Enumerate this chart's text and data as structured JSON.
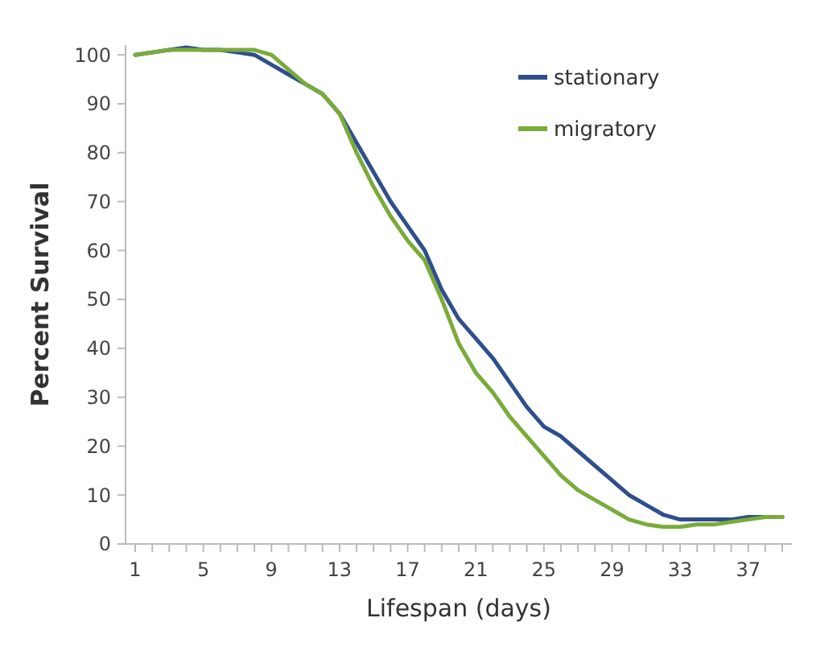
{
  "chart_data": {
    "type": "line",
    "xlabel": "Lifespan (days)",
    "ylabel": "Percent Survival",
    "categories": [
      "1",
      null,
      null,
      null,
      "5",
      null,
      null,
      null,
      "9",
      null,
      null,
      null,
      "13",
      null,
      null,
      null,
      "17",
      null,
      null,
      null,
      "21",
      null,
      null,
      null,
      "25",
      null,
      null,
      null,
      "29",
      null,
      null,
      null,
      "33",
      null,
      null,
      null,
      "37",
      null,
      null
    ],
    "series": [
      {
        "name": "stationary",
        "color": "#2f4f8c",
        "values": [
          100,
          100.5,
          101,
          101.5,
          101,
          101,
          100.5,
          100,
          98,
          96,
          94,
          92,
          88,
          82,
          76,
          70,
          65,
          60,
          52,
          46,
          42,
          38,
          33,
          28,
          24,
          22,
          19,
          16,
          13,
          10,
          8,
          6,
          5,
          5,
          5,
          5,
          5.5,
          5.5,
          5.5
        ]
      },
      {
        "name": "migratory",
        "color": "#7aab3a",
        "values": [
          100,
          100.5,
          101,
          101,
          101,
          101,
          101,
          101,
          100,
          97,
          94,
          92,
          88,
          80,
          73,
          67,
          62,
          58,
          50,
          41,
          35,
          31,
          26,
          22,
          18,
          14,
          11,
          9,
          7,
          5,
          4,
          3.5,
          3.5,
          4,
          4,
          4.5,
          5,
          5.5,
          5.5
        ]
      }
    ],
    "ylim": [
      0,
      102
    ],
    "yticks": [
      0,
      10,
      20,
      30,
      40,
      50,
      60,
      70,
      80,
      90,
      100
    ],
    "grid": false,
    "legend": "top right",
    "marker": "none",
    "line_style": "solid"
  }
}
